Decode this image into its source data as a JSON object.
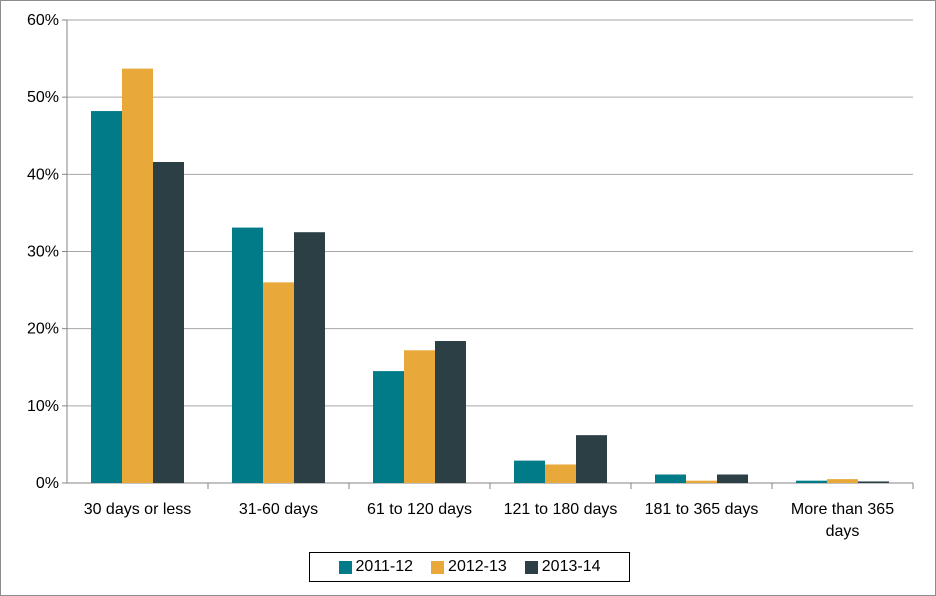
{
  "chart_data": {
    "type": "bar",
    "categories": [
      "30 days or less",
      "31-60 days",
      "61 to 120 days",
      "121 to 180 days",
      "181 to 365 days",
      "More than 365 days"
    ],
    "category_lines": [
      [
        "30 days or less"
      ],
      [
        "31-60 days"
      ],
      [
        "61 to 120 days"
      ],
      [
        "121 to 180 days"
      ],
      [
        "181 to 365 days"
      ],
      [
        "More than 365",
        "days"
      ]
    ],
    "series": [
      {
        "name": "2011-12",
        "color": "#007B87",
        "values": [
          48.2,
          33.1,
          14.5,
          2.9,
          1.1,
          0.3
        ]
      },
      {
        "name": "2012-13",
        "color": "#E8A83A",
        "values": [
          53.7,
          26.0,
          17.2,
          2.4,
          0.3,
          0.5
        ]
      },
      {
        "name": "2013-14",
        "color": "#2B3F45",
        "values": [
          41.6,
          32.5,
          18.4,
          6.2,
          1.1,
          0.2
        ]
      }
    ],
    "y_ticks": [
      "0%",
      "10%",
      "20%",
      "30%",
      "40%",
      "50%",
      "60%"
    ],
    "ylim": [
      0,
      60
    ],
    "y_unit": "percent",
    "grid": true,
    "legend_position": "bottom"
  }
}
